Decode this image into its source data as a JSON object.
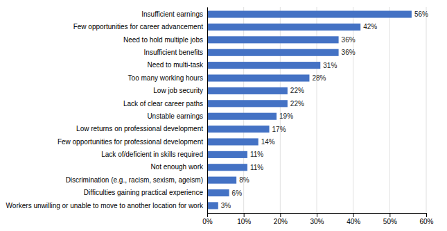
{
  "chart_data": {
    "type": "bar",
    "orientation": "horizontal",
    "categories": [
      "Workers unwilling or unable to move to another location for work",
      "Difficulties gaining practical experience",
      "Discrimination (e.g., racism, sexism, ageism)",
      "Not enough work",
      "Lack of/deficient in skills required",
      "Few opportunities for professional development",
      "Low returns on professional development",
      "Unstable earnings",
      "Lack of clear career paths",
      "Low job security",
      "Too many working hours",
      "Need to multi-task",
      "Insufficient benefits",
      "Need to hold multiple jobs",
      "Few opportunities for career advancement",
      "Insufficient earnings"
    ],
    "values": [
      3,
      6,
      8,
      11,
      11,
      14,
      17,
      19,
      22,
      22,
      28,
      31,
      36,
      36,
      42,
      56
    ],
    "value_labels": [
      "3%",
      "6%",
      "8%",
      "11%",
      "11%",
      "14%",
      "17%",
      "19%",
      "22%",
      "22%",
      "28%",
      "31%",
      "36%",
      "36%",
      "42%",
      "56%"
    ],
    "data_labels": true,
    "color": "#4472C4",
    "xlim": [
      0,
      60
    ],
    "xticks": [
      {
        "value": 0,
        "label": "0%"
      },
      {
        "value": 10,
        "label": "10%"
      },
      {
        "value": 20,
        "label": "20%"
      },
      {
        "value": 30,
        "label": "30%"
      },
      {
        "value": 40,
        "label": "40%"
      },
      {
        "value": 50,
        "label": "50%"
      },
      {
        "value": 60,
        "label": "60%"
      }
    ],
    "grid": true
  }
}
